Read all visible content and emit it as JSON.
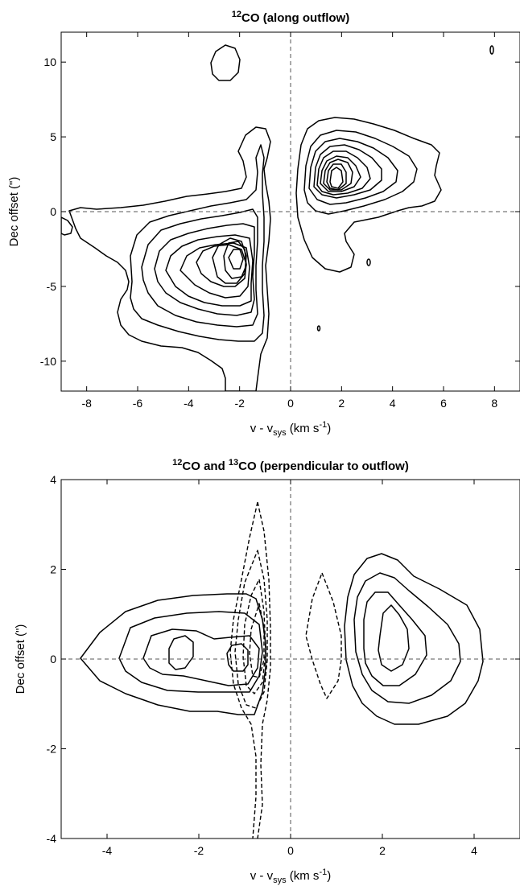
{
  "chart_data": [
    {
      "type": "contour",
      "title_base": "CO (along outflow)",
      "title_sup": "12",
      "xlabel_base": "v - v",
      "xlabel_sub": "sys",
      "xlabel_unit": " (km s",
      "xlabel_unit_sup": "-1",
      "xlabel_close": ")",
      "ylabel": "Dec offset (\")",
      "xlim": [
        -9,
        9
      ],
      "ylim": [
        -12,
        12
      ],
      "xticks": [
        "-8",
        "-6",
        "-4",
        "-2",
        "0",
        "2",
        "4",
        "6",
        "8"
      ],
      "yticks": [
        "10",
        "5",
        "0",
        "-5",
        "-10"
      ],
      "reference_lines": {
        "x": 0,
        "y": 0
      },
      "blob_centers": [
        {
          "x": -1.6,
          "y": -3.1
        },
        {
          "x": 1.6,
          "y": 2.8
        },
        {
          "x": -2.8,
          "y": 10.0
        }
      ]
    },
    {
      "type": "contour",
      "title_sup1": "12",
      "title_part1": "CO and ",
      "title_sup2": "13",
      "title_part2": "CO (perpendicular to outflow)",
      "xlabel_base": "v - v",
      "xlabel_sub": "sys",
      "xlabel_unit": " (km s",
      "xlabel_unit_sup": "-1",
      "xlabel_close": ")",
      "ylabel": "Dec offset (\")",
      "xlim": [
        -5,
        5
      ],
      "ylim": [
        -4,
        4
      ],
      "xticks": [
        "-4",
        "-2",
        "0",
        "2",
        "4"
      ],
      "yticks": [
        "4",
        "2",
        "0",
        "-2",
        "-4"
      ],
      "reference_lines": {
        "x": 0,
        "y": 0
      },
      "series": [
        {
          "line_style": "solid"
        },
        {
          "line_style": "dashed"
        }
      ]
    }
  ]
}
